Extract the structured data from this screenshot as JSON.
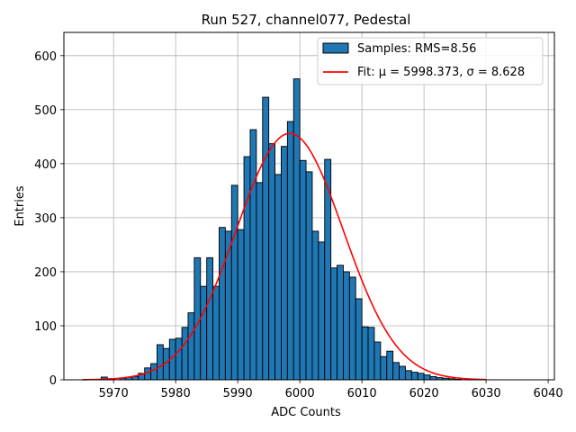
{
  "chart_data": {
    "type": "bar",
    "title": "Run 527, channel077, Pedestal",
    "xlabel": "ADC Counts",
    "ylabel": "Entries",
    "xlim": [
      5962,
      6041
    ],
    "ylim": [
      0,
      643
    ],
    "xticks": [
      5970,
      5980,
      5990,
      6000,
      6010,
      6020,
      6030,
      6040
    ],
    "yticks": [
      0,
      100,
      200,
      300,
      400,
      500,
      600
    ],
    "grid": true,
    "legend_position": "top-right",
    "bar_color": "#1f77b4",
    "fit_color": "#ff0000",
    "histogram": {
      "name": "Samples: RMS=8.56",
      "bin_start": 5968,
      "bin_width": 1,
      "counts": [
        5,
        2,
        0,
        3,
        5,
        6,
        12,
        22,
        30,
        65,
        58,
        75,
        77,
        97,
        124,
        226,
        173,
        226,
        173,
        282,
        275,
        360,
        278,
        413,
        463,
        365,
        523,
        437,
        380,
        432,
        478,
        557,
        406,
        385,
        275,
        255,
        408,
        207,
        212,
        200,
        190,
        150,
        98,
        97,
        70,
        43,
        53,
        32,
        25,
        17,
        14,
        12,
        9,
        6,
        4,
        3,
        2,
        1,
        0,
        0,
        0,
        0
      ]
    },
    "fit": {
      "name": "Fit: μ = 5998.373, σ = 8.628",
      "mu": 5998.373,
      "sigma": 8.628,
      "amplitude": 456,
      "x_range": [
        5965,
        6030
      ]
    }
  }
}
